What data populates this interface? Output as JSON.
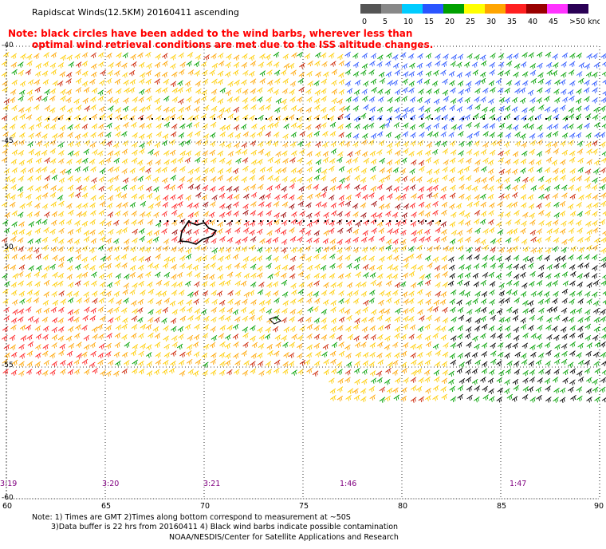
{
  "header": {
    "title": "Rapidscat Winds(12.5KM) 20160411 ascending",
    "note_line1": "Note: black circles have been added to the wind barbs, wherever less than",
    "note_line2": "optimal wind retrieval conditions are met due to the ISS altitude changes."
  },
  "legend": {
    "labels": [
      "0",
      "5",
      "10",
      "15",
      "20",
      "25",
      "30",
      "35",
      "40",
      "45",
      ">50 knots"
    ],
    "colors": [
      "#555555",
      "#888888",
      "#00ccff",
      "#2a55ff",
      "#00a000",
      "#ffff00",
      "#ffa500",
      "#ff2020",
      "#990000",
      "#ff33ff",
      "#2a0055"
    ]
  },
  "axes": {
    "lat_labels": [
      "-40",
      "-45",
      "-50",
      "-55",
      "-60"
    ],
    "lon_labels": [
      "60",
      "65",
      "70",
      "75",
      "80",
      "85",
      "90"
    ]
  },
  "time_labels": [
    "3:19",
    "3:20",
    "3:21",
    "1:46",
    "1:47"
  ],
  "footer": {
    "line1": "Note: 1) Times are GMT 2)Times along bottom correspond to measurement at ~50S",
    "line2": "3)Data buffer is 22 hrs from 20160411 4) Black wind barbs indicate possible contamination",
    "line3": "NOAA/NESDIS/Center for Satellite Applications and Research"
  }
}
